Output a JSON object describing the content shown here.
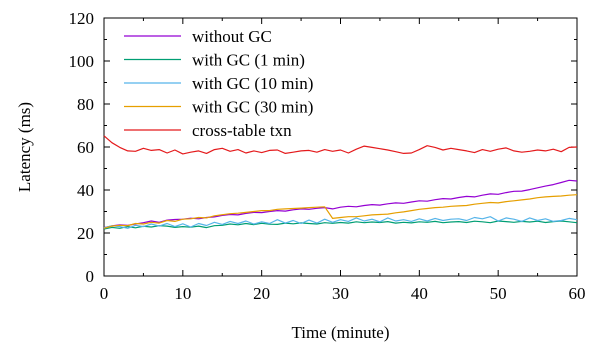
{
  "chart_data": {
    "type": "line",
    "xlabel": "Time (minute)",
    "ylabel": "Latency (ms)",
    "xlim": [
      0,
      60
    ],
    "ylim": [
      0,
      120
    ],
    "xticks": [
      "0",
      "10",
      "20",
      "30",
      "40",
      "50",
      "60"
    ],
    "yticks": [
      "0",
      "20",
      "40",
      "60",
      "80",
      "100",
      "120"
    ],
    "legend_position": "top-left",
    "grid": false,
    "series": [
      {
        "name": "without GC",
        "color": "#9400d3",
        "x": [
          0,
          1,
          2,
          3,
          4,
          5,
          6,
          7,
          8,
          9,
          10,
          11,
          12,
          13,
          14,
          15,
          16,
          17,
          18,
          19,
          20,
          21,
          22,
          23,
          24,
          25,
          26,
          27,
          28,
          29,
          30,
          31,
          32,
          33,
          34,
          35,
          36,
          37,
          38,
          39,
          40,
          41,
          42,
          43,
          44,
          45,
          46,
          47,
          48,
          49,
          50,
          51,
          52,
          53,
          54,
          55,
          56,
          57,
          58,
          59,
          60
        ],
        "y": [
          22.5,
          23.3,
          23.8,
          23.6,
          24.2,
          24.8,
          25.6,
          25.0,
          26.0,
          26.3,
          26.4,
          26.9,
          26.6,
          27.2,
          27.5,
          28.2,
          28.6,
          28.4,
          29.1,
          29.6,
          29.5,
          30.0,
          30.4,
          30.2,
          30.8,
          31.2,
          31.0,
          31.5,
          31.8,
          31.2,
          32.0,
          32.4,
          32.2,
          32.8,
          33.2,
          33.0,
          33.6,
          34.0,
          33.8,
          34.4,
          35.0,
          34.8,
          35.5,
          36.0,
          35.8,
          36.5,
          37.0,
          36.8,
          37.6,
          38.2,
          38.0,
          38.8,
          39.4,
          39.5,
          40.2,
          41.0,
          41.8,
          42.5,
          43.5,
          44.5,
          44.2
        ]
      },
      {
        "name": "with GC (1 min)",
        "color": "#009e73",
        "x": [
          0,
          1,
          2,
          3,
          4,
          5,
          6,
          7,
          8,
          9,
          10,
          11,
          12,
          13,
          14,
          15,
          16,
          17,
          18,
          19,
          20,
          21,
          22,
          23,
          24,
          25,
          26,
          27,
          28,
          29,
          30,
          31,
          32,
          33,
          34,
          35,
          36,
          37,
          38,
          39,
          40,
          41,
          42,
          43,
          44,
          45,
          46,
          47,
          48,
          49,
          50,
          51,
          52,
          53,
          54,
          55,
          56,
          57,
          58,
          59,
          60
        ],
        "y": [
          21.8,
          22.6,
          22.2,
          23.0,
          22.4,
          23.1,
          22.8,
          23.4,
          23.2,
          22.6,
          23.0,
          22.7,
          23.2,
          22.5,
          23.4,
          23.6,
          24.2,
          23.8,
          24.4,
          23.9,
          24.5,
          24.1,
          24.0,
          24.6,
          24.3,
          24.7,
          24.4,
          24.2,
          24.8,
          24.5,
          24.9,
          24.6,
          25.2,
          24.8,
          25.1,
          24.9,
          25.3,
          24.6,
          25.0,
          24.7,
          25.2,
          25.0,
          25.4,
          24.8,
          25.1,
          25.3,
          24.9,
          25.5,
          25.2,
          24.8,
          25.6,
          25.3,
          25.0,
          25.4,
          25.1,
          25.5,
          24.9,
          25.3,
          25.6,
          25.2,
          24.8
        ]
      },
      {
        "name": "with GC (10 min)",
        "color": "#56b4e9",
        "x": [
          0,
          1,
          2,
          3,
          4,
          5,
          6,
          7,
          8,
          9,
          10,
          11,
          12,
          13,
          14,
          15,
          16,
          17,
          18,
          19,
          20,
          21,
          22,
          23,
          24,
          25,
          26,
          27,
          28,
          29,
          30,
          31,
          32,
          33,
          34,
          35,
          36,
          37,
          38,
          39,
          40,
          41,
          42,
          43,
          44,
          45,
          46,
          47,
          48,
          49,
          50,
          51,
          52,
          53,
          54,
          55,
          56,
          57,
          58,
          59,
          60
        ],
        "y": [
          22.4,
          23.4,
          23.0,
          22.2,
          23.6,
          23.0,
          24.2,
          23.2,
          24.4,
          23.0,
          24.3,
          22.8,
          24.4,
          23.5,
          25.0,
          24.0,
          25.4,
          24.4,
          25.6,
          24.2,
          25.2,
          24.4,
          26.2,
          24.6,
          25.8,
          24.4,
          26.0,
          24.6,
          26.4,
          25.0,
          26.2,
          25.4,
          27.0,
          25.6,
          26.4,
          25.2,
          27.0,
          25.6,
          26.2,
          25.4,
          26.6,
          25.6,
          26.8,
          25.8,
          26.4,
          26.6,
          25.8,
          27.2,
          26.6,
          27.6,
          25.6,
          27.0,
          26.4,
          25.4,
          27.0,
          25.8,
          26.6,
          25.4,
          25.8,
          26.8,
          26.2
        ]
      },
      {
        "name": "with GC (30 min)",
        "color": "#e69f00",
        "x": [
          0,
          1,
          2,
          3,
          4,
          5,
          6,
          7,
          8,
          9,
          10,
          11,
          12,
          13,
          14,
          15,
          16,
          17,
          18,
          19,
          20,
          21,
          22,
          23,
          24,
          25,
          26,
          27,
          28,
          29,
          30,
          31,
          32,
          33,
          34,
          35,
          36,
          37,
          38,
          39,
          40,
          41,
          42,
          43,
          44,
          45,
          46,
          47,
          48,
          49,
          50,
          51,
          52,
          53,
          54,
          55,
          56,
          57,
          58,
          59,
          60
        ],
        "y": [
          22.2,
          23.2,
          23.6,
          23.4,
          24.4,
          24.2,
          25.0,
          24.6,
          25.8,
          25.4,
          26.4,
          26.6,
          27.2,
          27.0,
          28.0,
          28.5,
          29.0,
          29.2,
          29.6,
          30.0,
          30.4,
          30.4,
          31.0,
          31.2,
          31.4,
          31.6,
          31.8,
          32.0,
          32.2,
          26.8,
          27.2,
          27.6,
          27.6,
          28.0,
          28.4,
          28.6,
          28.8,
          29.4,
          29.8,
          30.4,
          31.0,
          31.4,
          31.8,
          32.0,
          32.4,
          32.6,
          32.8,
          33.4,
          33.8,
          34.2,
          34.0,
          34.6,
          35.0,
          35.4,
          35.8,
          36.4,
          36.8,
          37.0,
          37.2,
          37.6,
          37.8
        ]
      },
      {
        "name": "cross-table txn",
        "color": "#e41a1c",
        "x": [
          0,
          1,
          2,
          3,
          4,
          5,
          6,
          7,
          8,
          9,
          10,
          11,
          12,
          13,
          14,
          15,
          16,
          17,
          18,
          19,
          20,
          21,
          22,
          23,
          24,
          25,
          26,
          27,
          28,
          29,
          30,
          31,
          32,
          33,
          34,
          35,
          36,
          37,
          38,
          39,
          40,
          41,
          42,
          43,
          44,
          45,
          46,
          47,
          48,
          49,
          50,
          51,
          52,
          53,
          54,
          55,
          56,
          57,
          58,
          59,
          60
        ],
        "y": [
          65.2,
          62.0,
          59.8,
          58.2,
          58.0,
          59.4,
          58.4,
          58.8,
          57.2,
          58.6,
          56.8,
          57.6,
          58.2,
          57.0,
          58.8,
          59.4,
          58.0,
          58.8,
          57.2,
          58.2,
          57.4,
          58.4,
          58.6,
          57.0,
          57.6,
          58.2,
          58.4,
          57.6,
          58.8,
          58.0,
          58.6,
          57.2,
          59.0,
          60.4,
          59.8,
          59.2,
          58.6,
          57.8,
          57.0,
          57.2,
          58.8,
          60.6,
          59.8,
          58.6,
          59.4,
          58.8,
          58.2,
          57.4,
          58.8,
          58.0,
          59.0,
          59.6,
          58.2,
          57.6,
          58.0,
          58.6,
          58.2,
          59.0,
          57.8,
          59.8,
          60.0
        ]
      }
    ]
  }
}
